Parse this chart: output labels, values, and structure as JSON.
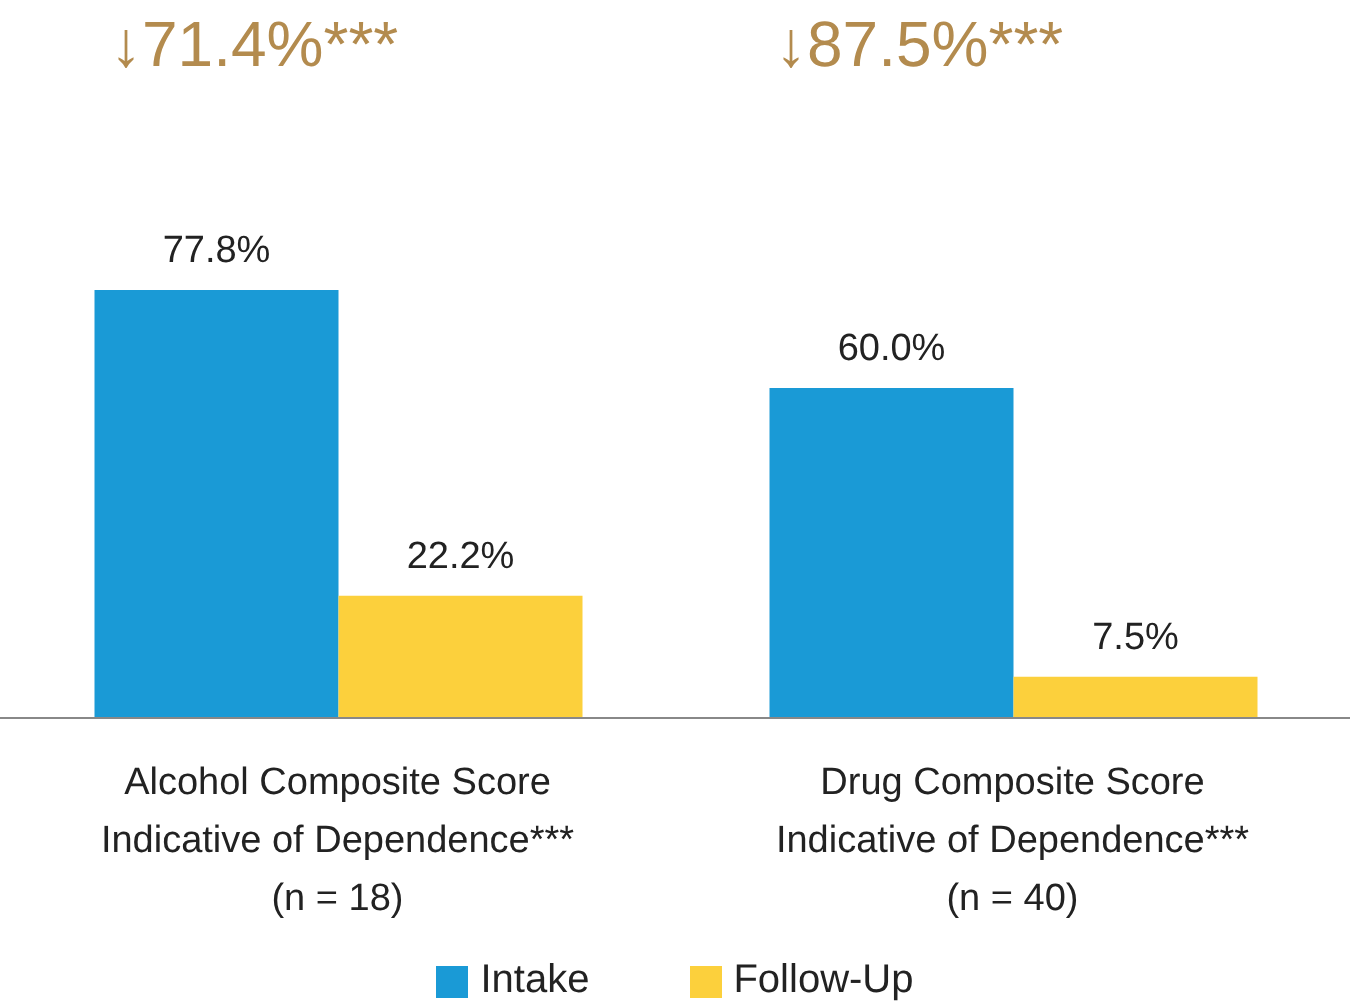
{
  "chart_data": {
    "type": "bar",
    "categories": [
      "Alcohol Composite Score\nIndicative of Dependence***\n(n = 18)",
      "Drug Composite Score\nIndicative of Dependence***\n(n = 40)"
    ],
    "series": [
      {
        "name": "Intake",
        "color": "#1a9ad6",
        "values": [
          77.8,
          60.0
        ],
        "value_labels": [
          "77.8%",
          "60.0%"
        ]
      },
      {
        "name": "Follow-Up",
        "color": "#fcd03c",
        "values": [
          22.2,
          7.5
        ],
        "value_labels": [
          "22.2%",
          "7.5%"
        ]
      }
    ],
    "legend": "bottom",
    "grid": false,
    "annotations": [
      "↓71.4%***",
      "↓87.5%***"
    ]
  }
}
